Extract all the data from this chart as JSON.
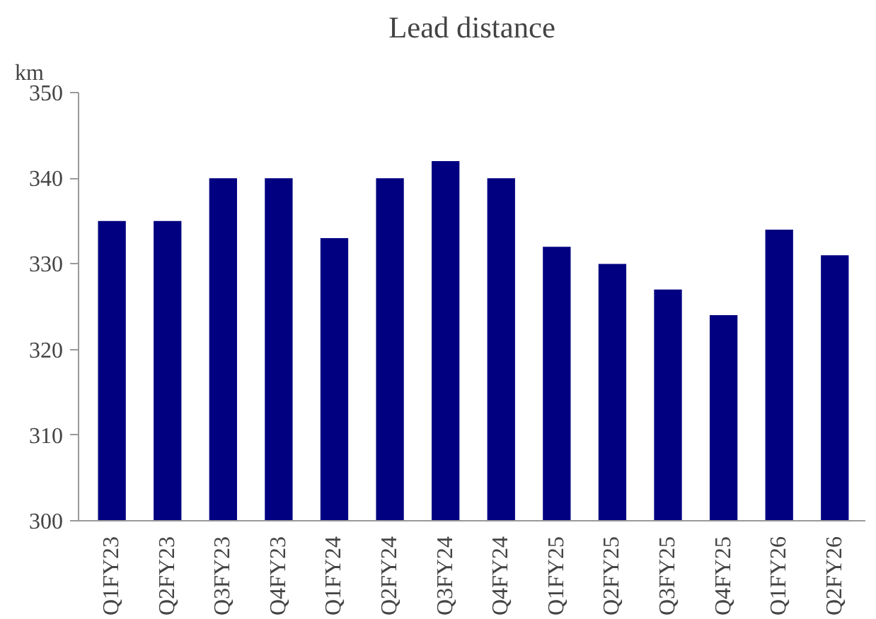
{
  "chart_data": {
    "type": "bar",
    "title": "Lead distance",
    "ylabel": "km",
    "categories": [
      "Q1FY23",
      "Q2FY23",
      "Q3FY23",
      "Q4FY23",
      "Q1FY24",
      "Q2FY24",
      "Q3FY24",
      "Q4FY24",
      "Q1FY25",
      "Q2FY25",
      "Q3FY25",
      "Q4FY25",
      "Q1FY26",
      "Q2FY26"
    ],
    "values": [
      335,
      335,
      340,
      340,
      333,
      340,
      342,
      340,
      332,
      330,
      327,
      324,
      334,
      331
    ],
    "color": "#000080",
    "ylim": [
      300,
      350
    ],
    "yticks": [
      300,
      310,
      320,
      330,
      340,
      350
    ],
    "grid": false
  }
}
